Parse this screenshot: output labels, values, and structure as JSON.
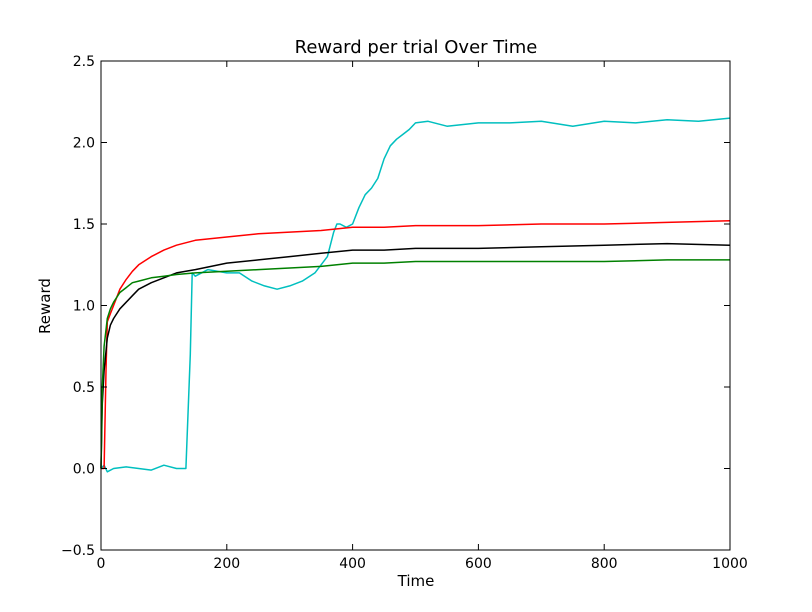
{
  "chart_data": {
    "type": "line",
    "title": "Reward per trial Over Time",
    "xlabel": "Time",
    "ylabel": "Reward",
    "xlim": [
      0,
      1000
    ],
    "ylim": [
      -0.5,
      2.5
    ],
    "xticks": [
      0,
      200,
      400,
      600,
      800,
      1000
    ],
    "xtick_labels": [
      "0",
      "200",
      "400",
      "600",
      "800",
      "1000"
    ],
    "yticks": [
      -0.5,
      0.0,
      0.5,
      1.0,
      1.5,
      2.0,
      2.5
    ],
    "ytick_labels": [
      "−0.5",
      "0.0",
      "0.5",
      "1.0",
      "1.5",
      "2.0",
      "2.5"
    ],
    "grid": false,
    "legend": false,
    "series": [
      {
        "color": "#00bfbf",
        "x": [
          0,
          5,
          10,
          20,
          40,
          60,
          80,
          100,
          120,
          135,
          142,
          145,
          150,
          170,
          200,
          220,
          240,
          260,
          280,
          300,
          320,
          340,
          360,
          370,
          375,
          380,
          390,
          400,
          410,
          420,
          430,
          440,
          450,
          460,
          470,
          480,
          490,
          500,
          520,
          550,
          600,
          650,
          700,
          750,
          800,
          850,
          900,
          950,
          1000
        ],
        "y": [
          0.0,
          0.02,
          -0.02,
          0.0,
          0.01,
          0.0,
          -0.01,
          0.02,
          0.0,
          0.0,
          0.7,
          1.2,
          1.18,
          1.22,
          1.2,
          1.2,
          1.15,
          1.12,
          1.1,
          1.12,
          1.15,
          1.2,
          1.3,
          1.45,
          1.5,
          1.5,
          1.48,
          1.5,
          1.6,
          1.68,
          1.72,
          1.78,
          1.9,
          1.98,
          2.02,
          2.05,
          2.08,
          2.12,
          2.13,
          2.1,
          2.12,
          2.12,
          2.13,
          2.1,
          2.13,
          2.12,
          2.14,
          2.13,
          2.15
        ]
      },
      {
        "color": "#ff0000",
        "x": [
          0,
          5,
          8,
          10,
          15,
          20,
          30,
          40,
          50,
          60,
          80,
          100,
          120,
          150,
          200,
          250,
          300,
          350,
          400,
          450,
          500,
          600,
          700,
          800,
          900,
          1000
        ],
        "y": [
          0.0,
          0.0,
          0.6,
          0.9,
          0.95,
          1.0,
          1.1,
          1.16,
          1.21,
          1.25,
          1.3,
          1.34,
          1.37,
          1.4,
          1.42,
          1.44,
          1.45,
          1.46,
          1.48,
          1.48,
          1.49,
          1.49,
          1.5,
          1.5,
          1.51,
          1.52
        ]
      },
      {
        "color": "#000000",
        "x": [
          0,
          2,
          5,
          10,
          15,
          20,
          30,
          40,
          50,
          60,
          80,
          100,
          120,
          150,
          200,
          250,
          300,
          350,
          400,
          450,
          500,
          600,
          700,
          800,
          900,
          1000
        ],
        "y": [
          0.0,
          0.4,
          0.6,
          0.8,
          0.88,
          0.92,
          0.98,
          1.02,
          1.06,
          1.1,
          1.14,
          1.17,
          1.2,
          1.22,
          1.26,
          1.28,
          1.3,
          1.32,
          1.34,
          1.34,
          1.35,
          1.35,
          1.36,
          1.37,
          1.38,
          1.37
        ]
      },
      {
        "color": "#008000",
        "x": [
          0,
          2,
          5,
          10,
          15,
          20,
          30,
          40,
          50,
          60,
          80,
          100,
          120,
          150,
          200,
          250,
          300,
          350,
          400,
          450,
          500,
          600,
          700,
          800,
          900,
          1000
        ],
        "y": [
          0.0,
          0.5,
          0.75,
          0.92,
          0.98,
          1.02,
          1.08,
          1.11,
          1.14,
          1.15,
          1.17,
          1.18,
          1.19,
          1.2,
          1.21,
          1.22,
          1.23,
          1.24,
          1.26,
          1.26,
          1.27,
          1.27,
          1.27,
          1.27,
          1.28,
          1.28
        ]
      }
    ]
  }
}
